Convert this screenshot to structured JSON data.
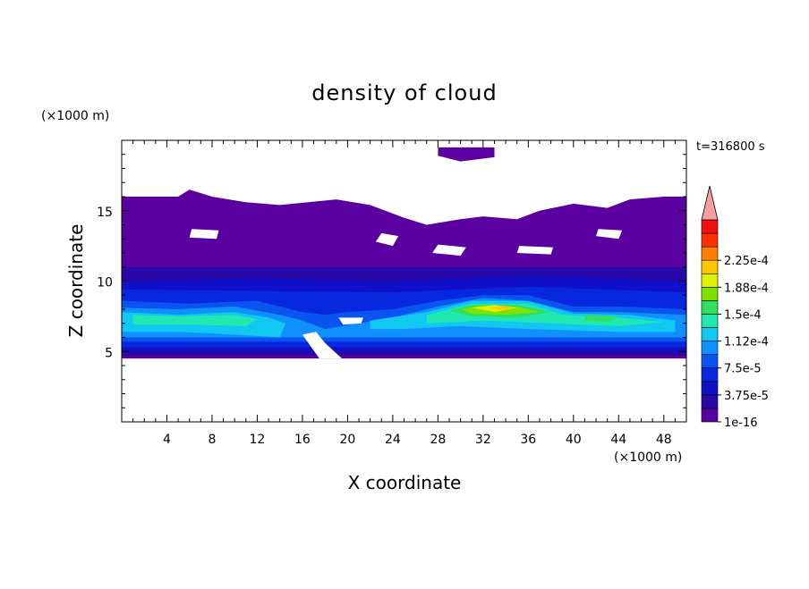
{
  "chart_data": {
    "type": "heatmap",
    "title": "density of cloud",
    "xlabel": "X coordinate",
    "ylabel": "Z coordinate",
    "x_unit": "(×1000 m)",
    "y_unit": "(×1000 m)",
    "time_label": "t=316800 s",
    "xlim": [
      0,
      50
    ],
    "ylim": [
      0,
      20
    ],
    "x_ticks": [
      4,
      8,
      12,
      16,
      20,
      24,
      28,
      32,
      36,
      40,
      44,
      48
    ],
    "y_ticks": [
      5,
      10,
      15
    ],
    "colorbar": {
      "levels": [
        1e-16,
        1.875e-05,
        3.75e-05,
        5.625e-05,
        7.5e-05,
        9.375e-05,
        0.0001125,
        0.00013125,
        0.00015,
        0.00016875,
        0.0001875,
        0.00020625,
        0.000225,
        0.00024375
      ],
      "tick_labels": [
        "1e-16",
        "3.75e-5",
        "7.5e-5",
        "1.12e-4",
        "1.5e-4",
        "1.88e-4",
        "2.25e-4"
      ],
      "colors": [
        "#5a00a0",
        "#2a08a8",
        "#1010c8",
        "#0828e0",
        "#0a55f0",
        "#1090ff",
        "#10c8f0",
        "#20e8b0",
        "#30e060",
        "#80e000",
        "#e0f000",
        "#ffc800",
        "#ff8000",
        "#ff3000",
        "#f01010"
      ],
      "extend_color": "#f4a0a0"
    },
    "regions": [
      {
        "level": 0,
        "polygon": [
          [
            0,
            16
          ],
          [
            5,
            16
          ],
          [
            6,
            16.5
          ],
          [
            8,
            16
          ],
          [
            11,
            15.6
          ],
          [
            14,
            15.4
          ],
          [
            19,
            15.8
          ],
          [
            22,
            15.4
          ],
          [
            25,
            14.5
          ],
          [
            27,
            14
          ],
          [
            30,
            14.4
          ],
          [
            32,
            14.6
          ],
          [
            35,
            14.4
          ],
          [
            37,
            15
          ],
          [
            40,
            15.5
          ],
          [
            43,
            15.2
          ],
          [
            45,
            15.8
          ],
          [
            48,
            16
          ],
          [
            50,
            16
          ],
          [
            50,
            4.5
          ],
          [
            0,
            4.5
          ]
        ]
      },
      {
        "level": 0,
        "polygon": [
          [
            28,
            19.5
          ],
          [
            33,
            19.5
          ],
          [
            33,
            18.8
          ],
          [
            30,
            18.5
          ],
          [
            28,
            18.9
          ]
        ]
      },
      {
        "level": 1,
        "polygon": [
          [
            0,
            11
          ],
          [
            50,
            11
          ],
          [
            50,
            4.7
          ],
          [
            0,
            4.7
          ]
        ]
      },
      {
        "level": 2,
        "polygon": [
          [
            0,
            10
          ],
          [
            12,
            10.2
          ],
          [
            24,
            10
          ],
          [
            36,
            10.4
          ],
          [
            50,
            10
          ],
          [
            50,
            5
          ],
          [
            0,
            5
          ]
        ]
      },
      {
        "level": 3,
        "polygon": [
          [
            0,
            9.4
          ],
          [
            12,
            9.3
          ],
          [
            24,
            9.2
          ],
          [
            36,
            9.6
          ],
          [
            50,
            9.2
          ],
          [
            50,
            5.3
          ],
          [
            0,
            5.3
          ]
        ]
      },
      {
        "level": 4,
        "polygon": [
          [
            0,
            8.6
          ],
          [
            6,
            8.4
          ],
          [
            12,
            8.6
          ],
          [
            16,
            7.8
          ],
          [
            18,
            7.6
          ],
          [
            20,
            7.8
          ],
          [
            24,
            8
          ],
          [
            28,
            8.6
          ],
          [
            32,
            9
          ],
          [
            36,
            9
          ],
          [
            40,
            8.2
          ],
          [
            44,
            8.2
          ],
          [
            50,
            8
          ],
          [
            50,
            5.7
          ],
          [
            0,
            5.7
          ]
        ]
      },
      {
        "level": 5,
        "polygon": [
          [
            0,
            8.1
          ],
          [
            5,
            8
          ],
          [
            10,
            8.2
          ],
          [
            14,
            7.6
          ],
          [
            16,
            7.2
          ],
          [
            18,
            6.6
          ],
          [
            21,
            7
          ],
          [
            24,
            7.4
          ],
          [
            28,
            8.2
          ],
          [
            32,
            8.8
          ],
          [
            36,
            8.6
          ],
          [
            40,
            7.8
          ],
          [
            44,
            7.8
          ],
          [
            50,
            7.6
          ],
          [
            50,
            6
          ],
          [
            0,
            6
          ]
        ]
      },
      {
        "level": 6,
        "polygon": [
          [
            0,
            7.8
          ],
          [
            5,
            7.6
          ],
          [
            10,
            7.8
          ],
          [
            13,
            7.4
          ],
          [
            14.5,
            7
          ],
          [
            14,
            6
          ],
          [
            10,
            6.2
          ],
          [
            5,
            6.4
          ],
          [
            0,
            6.4
          ]
        ]
      },
      {
        "level": 6,
        "polygon": [
          [
            22,
            7.2
          ],
          [
            27,
            7.8
          ],
          [
            31,
            8.6
          ],
          [
            36,
            8.6
          ],
          [
            40,
            7.7
          ],
          [
            45,
            7.6
          ],
          [
            49,
            7.2
          ],
          [
            49,
            6.4
          ],
          [
            44,
            6.4
          ],
          [
            36,
            6.6
          ],
          [
            30,
            6.8
          ],
          [
            25,
            6.6
          ],
          [
            22,
            6.6
          ]
        ]
      },
      {
        "level": 7,
        "polygon": [
          [
            1,
            7.6
          ],
          [
            5,
            7.5
          ],
          [
            10,
            7.6
          ],
          [
            12,
            7.3
          ],
          [
            11,
            6.8
          ],
          [
            6,
            6.9
          ],
          [
            1,
            6.9
          ]
        ]
      },
      {
        "level": 7,
        "polygon": [
          [
            27,
            7.6
          ],
          [
            31,
            8.4
          ],
          [
            36,
            8.4
          ],
          [
            39,
            7.6
          ],
          [
            44,
            7.4
          ],
          [
            48,
            7.1
          ],
          [
            44,
            6.8
          ],
          [
            38,
            7
          ],
          [
            32,
            7.2
          ],
          [
            27,
            7
          ]
        ]
      },
      {
        "level": 8,
        "polygon": [
          [
            29,
            7.9
          ],
          [
            31,
            8.3
          ],
          [
            35,
            8.3
          ],
          [
            38,
            7.8
          ],
          [
            35,
            7.4
          ],
          [
            31,
            7.5
          ]
        ]
      },
      {
        "level": 8,
        "polygon": [
          [
            41,
            7.6
          ],
          [
            44,
            7.5
          ],
          [
            43,
            7.1
          ],
          [
            41,
            7.2
          ]
        ]
      },
      {
        "level": 9,
        "polygon": [
          [
            30,
            8
          ],
          [
            32,
            8.3
          ],
          [
            35,
            8.2
          ],
          [
            37,
            7.8
          ],
          [
            34,
            7.6
          ],
          [
            31,
            7.7
          ]
        ]
      },
      {
        "level": 10,
        "polygon": [
          [
            31,
            8.1
          ],
          [
            33,
            8.3
          ],
          [
            35,
            8.1
          ],
          [
            33,
            7.8
          ]
        ]
      },
      {
        "level": 11,
        "polygon": [
          [
            32.5,
            8.15
          ],
          [
            34,
            8.25
          ],
          [
            34.6,
            8.05
          ],
          [
            33.5,
            7.95
          ]
        ]
      }
    ],
    "clear_regions": [
      {
        "polygon": [
          [
            16,
            6.2
          ],
          [
            17.5,
            4.5
          ],
          [
            19.5,
            4.5
          ],
          [
            18,
            5.6
          ],
          [
            17.2,
            6.4
          ]
        ]
      },
      {
        "polygon": [
          [
            19.2,
            7.4
          ],
          [
            21.4,
            7.4
          ],
          [
            21.2,
            7
          ],
          [
            19.6,
            6.9
          ]
        ]
      },
      {
        "polygon": [
          [
            22.5,
            12.8
          ],
          [
            24,
            12.5
          ],
          [
            24.5,
            13.2
          ],
          [
            23,
            13.4
          ]
        ]
      },
      {
        "polygon": [
          [
            27.5,
            12
          ],
          [
            30,
            11.8
          ],
          [
            30.5,
            12.4
          ],
          [
            28,
            12.6
          ]
        ]
      },
      {
        "polygon": [
          [
            35,
            12
          ],
          [
            38,
            11.9
          ],
          [
            38.2,
            12.4
          ],
          [
            35.2,
            12.5
          ]
        ]
      },
      {
        "polygon": [
          [
            6,
            13.1
          ],
          [
            8.4,
            13
          ],
          [
            8.6,
            13.6
          ],
          [
            6.2,
            13.7
          ]
        ]
      },
      {
        "polygon": [
          [
            42,
            13.2
          ],
          [
            44,
            13
          ],
          [
            44.3,
            13.6
          ],
          [
            42.2,
            13.7
          ]
        ]
      }
    ]
  }
}
